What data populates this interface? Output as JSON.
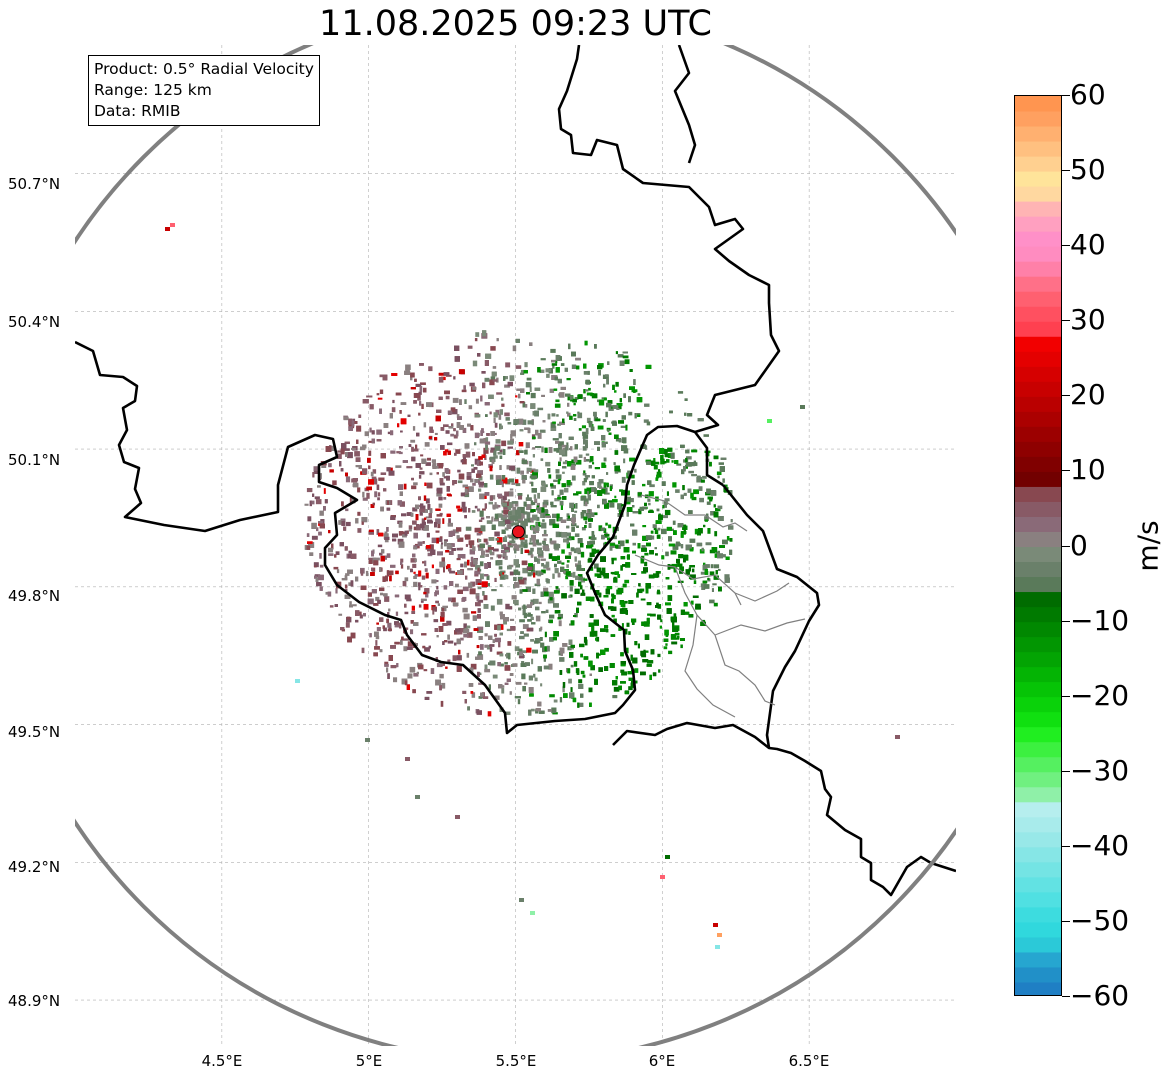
{
  "title": "11.08.2025 09:23 UTC",
  "info_box": {
    "product": "Product: 0.5° Radial Velocity",
    "range": "Range: 125 km",
    "data": "Data: RMIB"
  },
  "map_axes": {
    "x_ticks": [
      "4.5°E",
      "5°E",
      "5.5°E",
      "6°E",
      "6.5°E"
    ],
    "y_ticks": [
      "50.7°N",
      "50.4°N",
      "50.1°N",
      "49.8°N",
      "49.5°N",
      "49.2°N",
      "48.9°N"
    ],
    "lon_values": [
      4.5,
      5.0,
      5.5,
      6.0,
      6.5
    ],
    "lat_values": [
      50.7,
      50.4,
      50.1,
      49.8,
      49.5,
      49.2,
      48.9
    ],
    "lon_range": [
      4.0,
      7.0
    ],
    "lat_range": [
      48.8,
      50.98
    ],
    "grid": true
  },
  "radar": {
    "site_lon": 5.51,
    "site_lat": 49.92,
    "range_km": 125,
    "site_color": "#e8141e"
  },
  "colorbar": {
    "units": "m/s",
    "range": [
      -60,
      60
    ],
    "tick_labels": [
      "60",
      "50",
      "40",
      "30",
      "20",
      "10",
      "0",
      "−10",
      "−20",
      "−30",
      "−40",
      "−50",
      "−60"
    ],
    "tick_values": [
      60,
      50,
      40,
      30,
      20,
      10,
      0,
      -10,
      -20,
      -30,
      -40,
      -50,
      -60
    ],
    "bins": [
      {
        "from": -60,
        "to": -58,
        "color": "#1f7fc4"
      },
      {
        "from": -58,
        "to": -56,
        "color": "#2190c8"
      },
      {
        "from": -56,
        "to": -54,
        "color": "#26a6d0"
      },
      {
        "from": -54,
        "to": -52,
        "color": "#2bc9d8"
      },
      {
        "from": -52,
        "to": -50,
        "color": "#30d8dd"
      },
      {
        "from": -50,
        "to": -48,
        "color": "#3ddcdf"
      },
      {
        "from": -48,
        "to": -46,
        "color": "#50e0e2"
      },
      {
        "from": -46,
        "to": -44,
        "color": "#62e2e3"
      },
      {
        "from": -44,
        "to": -42,
        "color": "#74e4e4"
      },
      {
        "from": -42,
        "to": -40,
        "color": "#86e6e6"
      },
      {
        "from": -40,
        "to": -38,
        "color": "#98e8e8"
      },
      {
        "from": -38,
        "to": -36,
        "color": "#a8ebeb"
      },
      {
        "from": -36,
        "to": -34,
        "color": "#b6eeee"
      },
      {
        "from": -34,
        "to": -32,
        "color": "#8ff0a8"
      },
      {
        "from": -32,
        "to": -30,
        "color": "#70f080"
      },
      {
        "from": -30,
        "to": -28,
        "color": "#55f060"
      },
      {
        "from": -28,
        "to": -26,
        "color": "#3cf040"
      },
      {
        "from": -26,
        "to": -24,
        "color": "#20ee20"
      },
      {
        "from": -24,
        "to": -22,
        "color": "#10e010"
      },
      {
        "from": -22,
        "to": -20,
        "color": "#0ad20a"
      },
      {
        "from": -20,
        "to": -18,
        "color": "#06c406"
      },
      {
        "from": -18,
        "to": -16,
        "color": "#04b404"
      },
      {
        "from": -16,
        "to": -14,
        "color": "#03a403"
      },
      {
        "from": -14,
        "to": -12,
        "color": "#029602"
      },
      {
        "from": -12,
        "to": -10,
        "color": "#018801"
      },
      {
        "from": -10,
        "to": -8,
        "color": "#007a00"
      },
      {
        "from": -8,
        "to": -6,
        "color": "#006c00"
      },
      {
        "from": -6,
        "to": -4,
        "color": "#5a7a5a"
      },
      {
        "from": -4,
        "to": -2,
        "color": "#6a806a"
      },
      {
        "from": -2,
        "to": 0,
        "color": "#7a8a78"
      },
      {
        "from": 0,
        "to": 2,
        "color": "#8a8080"
      },
      {
        "from": 2,
        "to": 4,
        "color": "#8a6a78"
      },
      {
        "from": 4,
        "to": 6,
        "color": "#885a66"
      },
      {
        "from": 6,
        "to": 8,
        "color": "#884850"
      },
      {
        "from": 8,
        "to": 10,
        "color": "#720000"
      },
      {
        "from": 10,
        "to": 12,
        "color": "#800000"
      },
      {
        "from": 12,
        "to": 14,
        "color": "#8e0000"
      },
      {
        "from": 14,
        "to": 16,
        "color": "#9c0000"
      },
      {
        "from": 16,
        "to": 18,
        "color": "#ab0000"
      },
      {
        "from": 18,
        "to": 20,
        "color": "#ba0000"
      },
      {
        "from": 20,
        "to": 22,
        "color": "#c80000"
      },
      {
        "from": 22,
        "to": 24,
        "color": "#d60000"
      },
      {
        "from": 24,
        "to": 26,
        "color": "#e40000"
      },
      {
        "from": 26,
        "to": 28,
        "color": "#f20000"
      },
      {
        "from": 28,
        "to": 30,
        "color": "#ff4050"
      },
      {
        "from": 30,
        "to": 32,
        "color": "#ff5060"
      },
      {
        "from": 32,
        "to": 34,
        "color": "#ff6070"
      },
      {
        "from": 34,
        "to": 36,
        "color": "#ff7088"
      },
      {
        "from": 36,
        "to": 38,
        "color": "#ff80a8"
      },
      {
        "from": 38,
        "to": 40,
        "color": "#ff8cc0"
      },
      {
        "from": 40,
        "to": 42,
        "color": "#ff90c8"
      },
      {
        "from": 42,
        "to": 44,
        "color": "#ffa0c0"
      },
      {
        "from": 44,
        "to": 46,
        "color": "#ffb4b4"
      },
      {
        "from": 46,
        "to": 48,
        "color": "#ffd8a0"
      },
      {
        "from": 48,
        "to": 50,
        "color": "#ffe49a"
      },
      {
        "from": 50,
        "to": 52,
        "color": "#ffd090"
      },
      {
        "from": 52,
        "to": 54,
        "color": "#ffc080"
      },
      {
        "from": 54,
        "to": 56,
        "color": "#ffb070"
      },
      {
        "from": 56,
        "to": 58,
        "color": "#ffa060"
      },
      {
        "from": 58,
        "to": 60,
        "color": "#ff9550"
      }
    ]
  },
  "colors": {
    "range_ring": "#808080",
    "border_major": "#000000",
    "border_minor": "#808080",
    "gridline": "#b0b0b0"
  }
}
